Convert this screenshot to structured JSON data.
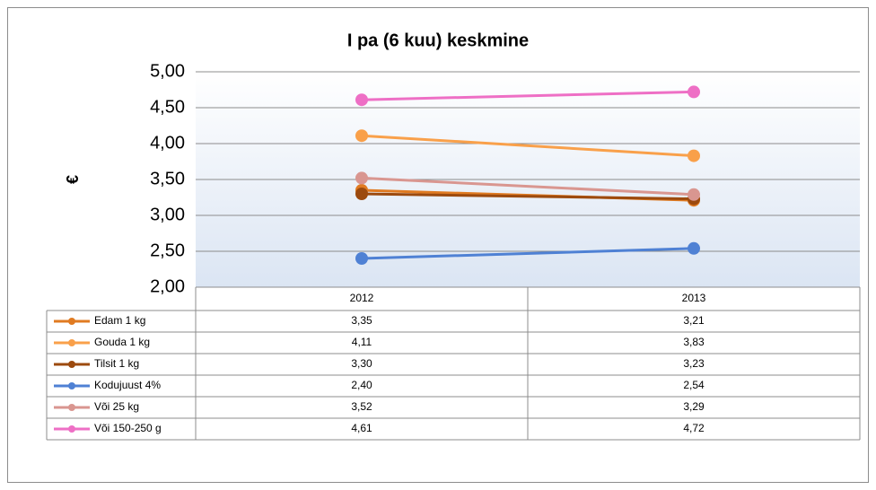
{
  "chart_data": {
    "type": "line",
    "title": "I pa (6 kuu) keskmine",
    "y_label": "€",
    "categories": [
      "2012",
      "2013"
    ],
    "series": [
      {
        "name": "Edam 1 kg",
        "color": "#e07b22",
        "values": [
          3.35,
          3.21
        ],
        "value_labels": [
          "3,35",
          "3,21"
        ]
      },
      {
        "name": "Gouda 1 kg",
        "color": "#f9a04a",
        "values": [
          4.11,
          3.83
        ],
        "value_labels": [
          "4,11",
          "3,83"
        ]
      },
      {
        "name": "Tilsit 1 kg",
        "color": "#9c4a0e",
        "values": [
          3.3,
          3.23
        ],
        "value_labels": [
          "3,30",
          "3,23"
        ]
      },
      {
        "name": "Kodujuust 4%",
        "color": "#4f81d4",
        "values": [
          2.4,
          2.54
        ],
        "value_labels": [
          "2,40",
          "2,54"
        ]
      },
      {
        "name": "Või 25 kg",
        "color": "#d99690",
        "values": [
          3.52,
          3.29
        ],
        "value_labels": [
          "3,52",
          "3,29"
        ]
      },
      {
        "name": "Või 150-250 g",
        "color": "#ee6fc5",
        "values": [
          4.61,
          4.72
        ],
        "value_labels": [
          "4,61",
          "4,72"
        ]
      }
    ],
    "ylim": [
      2,
      5
    ],
    "yticks": [
      {
        "value": 2,
        "label": "2,00"
      },
      {
        "value": 2.5,
        "label": "2,50"
      },
      {
        "value": 3,
        "label": "3,00"
      },
      {
        "value": 3.5,
        "label": "3,50"
      },
      {
        "value": 4,
        "label": "4,00"
      },
      {
        "value": 4.5,
        "label": "4,50"
      },
      {
        "value": 5,
        "label": "5,00"
      }
    ],
    "grid": true
  }
}
